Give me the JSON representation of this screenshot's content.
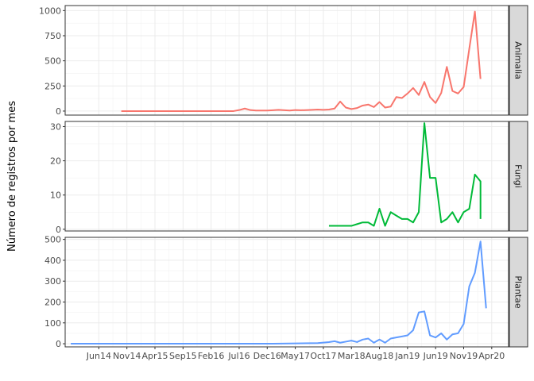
{
  "chart_data": {
    "type": "line",
    "ylabel": "Número de registros por mes",
    "xlabel": "",
    "grid": true,
    "x_ticks": [
      "Jun14",
      "Nov14",
      "Apr15",
      "Sep15",
      "Feb16",
      "Jul16",
      "Dec16",
      "May17",
      "Oct17",
      "Mar18",
      "Aug18",
      "Jan19",
      "Jun19",
      "Nov19",
      "Apr20"
    ],
    "x_range": [
      "2013-12",
      "2020-07"
    ],
    "panels": [
      {
        "strip": "Animalia",
        "color": "#F8766D",
        "ylim": [
          -40,
          1050
        ],
        "y_ticks": [
          0,
          250,
          500,
          750,
          1000
        ],
        "points": [
          [
            "2014-10",
            0
          ],
          [
            "2014-12",
            0
          ],
          [
            "2015-06",
            0
          ],
          [
            "2016-01",
            0
          ],
          [
            "2016-06",
            0
          ],
          [
            "2016-07",
            10
          ],
          [
            "2016-08",
            25
          ],
          [
            "2016-09",
            10
          ],
          [
            "2016-10",
            5
          ],
          [
            "2016-12",
            5
          ],
          [
            "2017-01",
            8
          ],
          [
            "2017-02",
            12
          ],
          [
            "2017-04",
            5
          ],
          [
            "2017-05",
            10
          ],
          [
            "2017-06",
            8
          ],
          [
            "2017-08",
            12
          ],
          [
            "2017-09",
            15
          ],
          [
            "2017-10",
            12
          ],
          [
            "2017-11",
            15
          ],
          [
            "2017-12",
            25
          ],
          [
            "2018-01",
            95
          ],
          [
            "2018-02",
            35
          ],
          [
            "2018-03",
            20
          ],
          [
            "2018-04",
            30
          ],
          [
            "2018-05",
            55
          ],
          [
            "2018-06",
            65
          ],
          [
            "2018-07",
            40
          ],
          [
            "2018-08",
            90
          ],
          [
            "2018-09",
            35
          ],
          [
            "2018-10",
            45
          ],
          [
            "2018-11",
            140
          ],
          [
            "2018-12",
            130
          ],
          [
            "2019-01",
            175
          ],
          [
            "2019-02",
            230
          ],
          [
            "2019-03",
            160
          ],
          [
            "2019-04",
            290
          ],
          [
            "2019-05",
            140
          ],
          [
            "2019-06",
            80
          ],
          [
            "2019-07",
            180
          ],
          [
            "2019-08",
            440
          ],
          [
            "2019-09",
            200
          ],
          [
            "2019-10",
            175
          ],
          [
            "2019-11",
            240
          ],
          [
            "2019-12",
            620
          ],
          [
            "2020-01",
            990
          ],
          [
            "2020-02",
            320
          ]
        ]
      },
      {
        "strip": "Fungi",
        "color": "#00BA38",
        "ylim": [
          -0.5,
          31.5
        ],
        "y_ticks": [
          0,
          10,
          20,
          30
        ],
        "points": [
          [
            "2017-11",
            1
          ],
          [
            "2018-01",
            1
          ],
          [
            "2018-03",
            1
          ],
          [
            "2018-04",
            1.5
          ],
          [
            "2018-05",
            2
          ],
          [
            "2018-06",
            2
          ],
          [
            "2018-07",
            1
          ],
          [
            "2018-08",
            6
          ],
          [
            "2018-09",
            1
          ],
          [
            "2018-10",
            5
          ],
          [
            "2018-11",
            4
          ],
          [
            "2018-12",
            3
          ],
          [
            "2019-01",
            3
          ],
          [
            "2019-02",
            2
          ],
          [
            "2019-03",
            5
          ],
          [
            "2019-04",
            31
          ],
          [
            "2019-05",
            15
          ],
          [
            "2019-06",
            15
          ],
          [
            "2019-07",
            2
          ],
          [
            "2019-08",
            3
          ],
          [
            "2019-09",
            5
          ],
          [
            "2019-10",
            2
          ],
          [
            "2019-11",
            5
          ],
          [
            "2019-12",
            6
          ],
          [
            "2020-01",
            16
          ],
          [
            "2020-02",
            14
          ],
          [
            "2020-02",
            3
          ]
        ]
      },
      {
        "strip": "Plantae",
        "color": "#619CFF",
        "ylim": [
          -15,
          510
        ],
        "y_ticks": [
          0,
          100,
          200,
          300,
          400,
          500
        ],
        "points": [
          [
            "2014-01",
            0
          ],
          [
            "2015-01",
            0
          ],
          [
            "2016-01",
            0
          ],
          [
            "2017-01",
            0
          ],
          [
            "2017-09",
            3
          ],
          [
            "2017-11",
            8
          ],
          [
            "2017-12",
            12
          ],
          [
            "2018-01",
            5
          ],
          [
            "2018-02",
            10
          ],
          [
            "2018-03",
            15
          ],
          [
            "2018-04",
            8
          ],
          [
            "2018-05",
            20
          ],
          [
            "2018-06",
            25
          ],
          [
            "2018-07",
            5
          ],
          [
            "2018-08",
            20
          ],
          [
            "2018-09",
            5
          ],
          [
            "2018-10",
            25
          ],
          [
            "2018-11",
            30
          ],
          [
            "2018-12",
            35
          ],
          [
            "2019-01",
            40
          ],
          [
            "2019-02",
            65
          ],
          [
            "2019-03",
            150
          ],
          [
            "2019-04",
            155
          ],
          [
            "2019-05",
            40
          ],
          [
            "2019-06",
            30
          ],
          [
            "2019-07",
            50
          ],
          [
            "2019-08",
            20
          ],
          [
            "2019-09",
            45
          ],
          [
            "2019-10",
            50
          ],
          [
            "2019-11",
            95
          ],
          [
            "2019-12",
            275
          ],
          [
            "2020-01",
            340
          ],
          [
            "2020-02",
            490
          ],
          [
            "2020-03",
            170
          ]
        ]
      }
    ]
  }
}
